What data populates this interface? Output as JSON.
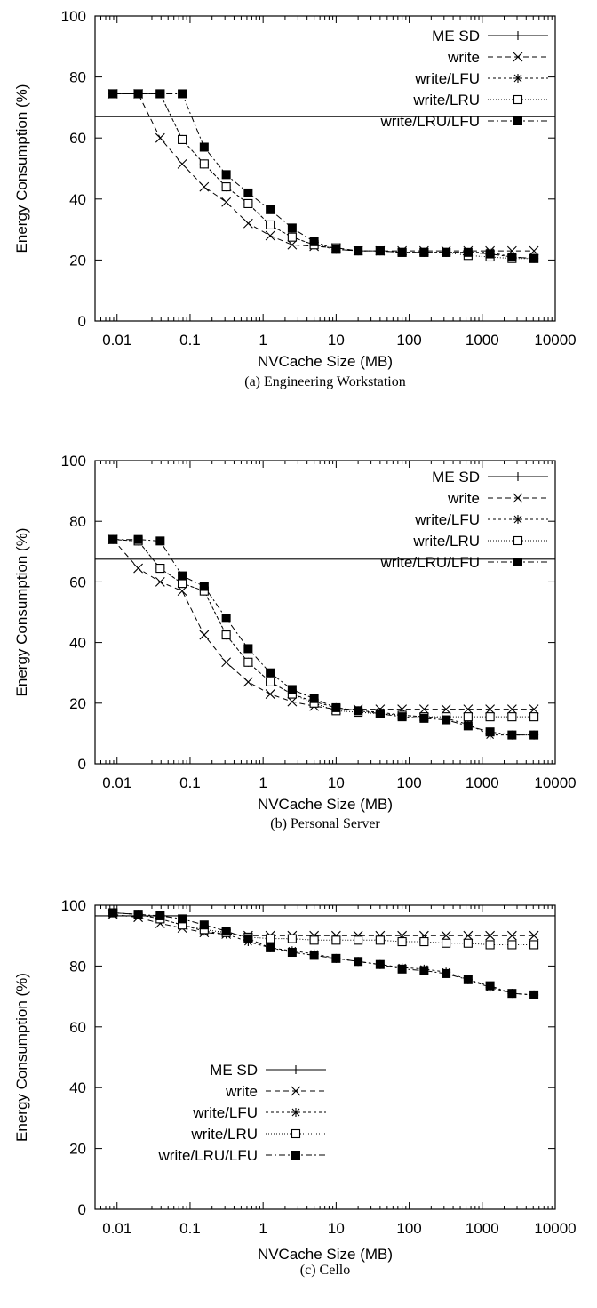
{
  "x_ticks": [
    0.01,
    0.1,
    1,
    10,
    100,
    1000,
    10000
  ],
  "x_tick_labels": [
    "0.01",
    "0.1",
    "1",
    "10",
    "100",
    "1000",
    "10000"
  ],
  "y_ticks": [
    0,
    20,
    40,
    60,
    80,
    100
  ],
  "y_tick_labels": [
    "0",
    "20",
    "40",
    "60",
    "80",
    "100"
  ],
  "chart_data": [
    {
      "type": "line",
      "caption": "(a) Engineering Workstation",
      "xlabel": "NVCache Size (MB)",
      "ylabel": "Energy Consumption (%)",
      "xscale": "log",
      "xlim": [
        0.005,
        10000
      ],
      "ylim": [
        0,
        100
      ],
      "legend_position": "top-right",
      "x": [
        0.0088,
        0.0195,
        0.039,
        0.078,
        0.156,
        0.3125,
        0.625,
        1.25,
        2.5,
        5,
        10,
        20,
        40,
        80,
        160,
        320,
        640,
        1280,
        2560,
        5120
      ],
      "series": [
        {
          "name": "ME SD",
          "marker": "plus",
          "dash": "",
          "constant": 67
        },
        {
          "name": "write",
          "marker": "x",
          "dash": "6,4",
          "values": [
            74.5,
            74.5,
            60,
            51.5,
            44,
            39,
            32,
            28,
            25,
            24.5,
            24,
            23,
            23,
            23,
            23,
            23,
            23,
            23,
            23,
            23
          ]
        },
        {
          "name": "write/LFU",
          "marker": "star",
          "dash": "3,3",
          "values": [
            74.5,
            74.5,
            74.5,
            59.5,
            51.5,
            44,
            38.5,
            31.5,
            27.5,
            25,
            23.5,
            23,
            23,
            22.5,
            22.5,
            22.5,
            22.5,
            22.5,
            21,
            20.5
          ]
        },
        {
          "name": "write/LRU",
          "marker": "box",
          "dash": "1,2",
          "values": [
            74.5,
            74.5,
            74.5,
            59.5,
            51.5,
            44,
            38.5,
            31.5,
            27.5,
            25,
            24,
            23,
            23,
            22.5,
            22.5,
            22.5,
            21.5,
            21,
            20.5,
            20.5
          ]
        },
        {
          "name": "write/LRU/LFU",
          "marker": "filledbox",
          "dash": "7,3,2,3",
          "values": [
            74.5,
            74.5,
            74.5,
            74.5,
            57,
            48,
            42,
            36.5,
            30.5,
            26,
            23.5,
            23,
            23,
            22.5,
            22.5,
            22.5,
            22.5,
            22,
            21,
            20.5
          ]
        }
      ]
    },
    {
      "type": "line",
      "caption": "(b) Personal Server",
      "xlabel": "NVCache Size (MB)",
      "ylabel": "Energy Consumption (%)",
      "xscale": "log",
      "xlim": [
        0.005,
        10000
      ],
      "ylim": [
        0,
        100
      ],
      "legend_position": "top-right",
      "x": [
        0.0088,
        0.0195,
        0.039,
        0.078,
        0.156,
        0.3125,
        0.625,
        1.25,
        2.5,
        5,
        10,
        20,
        40,
        80,
        160,
        320,
        640,
        1280,
        2560,
        5120
      ],
      "series": [
        {
          "name": "ME SD",
          "marker": "plus",
          "dash": "",
          "constant": 67.5
        },
        {
          "name": "write",
          "marker": "x",
          "dash": "6,4",
          "values": [
            74,
            64.5,
            60,
            57,
            42.5,
            33.5,
            27,
            23,
            20.5,
            19,
            18,
            18,
            18,
            18,
            18,
            18,
            18,
            18,
            18,
            18
          ]
        },
        {
          "name": "write/LFU",
          "marker": "star",
          "dash": "3,3",
          "values": [
            74,
            73.5,
            64.5,
            59.5,
            57,
            42.5,
            33.5,
            27,
            23,
            20.5,
            18.5,
            17.5,
            17,
            16,
            15.5,
            15,
            13,
            9.5,
            9.5,
            9.5
          ]
        },
        {
          "name": "write/LRU",
          "marker": "box",
          "dash": "1,2",
          "values": [
            74,
            73.5,
            64.5,
            59.5,
            57,
            42.5,
            33.5,
            27,
            23,
            20,
            17.5,
            17,
            16.5,
            16,
            15.5,
            15.5,
            15.5,
            15.5,
            15.5,
            15.5
          ]
        },
        {
          "name": "write/LRU/LFU",
          "marker": "filledbox",
          "dash": "7,3,2,3",
          "values": [
            74,
            74,
            73.5,
            62,
            58.5,
            48,
            38,
            30,
            24.5,
            21.5,
            18.5,
            17.5,
            16.5,
            15.5,
            15,
            14.5,
            12.5,
            10.5,
            9.5,
            9.5
          ]
        }
      ]
    },
    {
      "type": "line",
      "caption": "(c) Cello",
      "xlabel": "NVCache Size (MB)",
      "ylabel": "Energy Consumption (%)",
      "xscale": "log",
      "xlim": [
        0.005,
        10000
      ],
      "ylim": [
        0,
        100
      ],
      "legend_position": "bottom-left",
      "x": [
        0.0088,
        0.0195,
        0.039,
        0.078,
        0.156,
        0.3125,
        0.625,
        1.25,
        2.5,
        5,
        10,
        20,
        40,
        80,
        160,
        320,
        640,
        1280,
        2560,
        5120
      ],
      "series": [
        {
          "name": "ME SD",
          "marker": "plus",
          "dash": "",
          "constant": 96.5
        },
        {
          "name": "write",
          "marker": "x",
          "dash": "6,4",
          "values": [
            97,
            96,
            94,
            92.5,
            91,
            90.5,
            90,
            90,
            90,
            90,
            90,
            90,
            90,
            90,
            90,
            90,
            90,
            90,
            90,
            90
          ]
        },
        {
          "name": "write/LFU",
          "marker": "star",
          "dash": "3,3",
          "values": [
            97.5,
            97,
            95.5,
            93.5,
            91.5,
            90.5,
            88,
            86,
            85,
            84,
            82.5,
            81.5,
            80.5,
            79.5,
            79,
            78,
            75.5,
            73,
            71,
            70.5
          ]
        },
        {
          "name": "write/LRU",
          "marker": "box",
          "dash": "1,2",
          "values": [
            97.5,
            97,
            95.5,
            93.5,
            92,
            91,
            89.5,
            89,
            89,
            88.5,
            88.5,
            88.5,
            88.5,
            88,
            88,
            87.5,
            87.5,
            87,
            87,
            87
          ]
        },
        {
          "name": "write/LRU/LFU",
          "marker": "filledbox",
          "dash": "7,3,2,3",
          "values": [
            97.5,
            97,
            96.5,
            95.5,
            93.5,
            91.5,
            89,
            86,
            84.5,
            83.5,
            82.5,
            81.5,
            80.5,
            79,
            78.5,
            77.5,
            75.5,
            73.5,
            71,
            70.5
          ]
        }
      ]
    }
  ]
}
